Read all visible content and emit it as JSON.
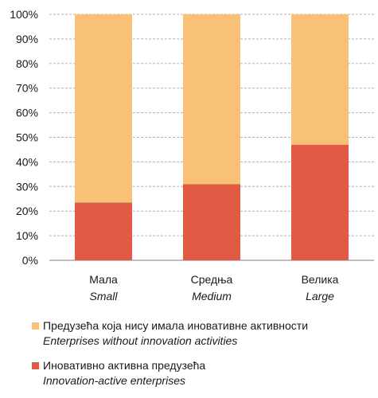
{
  "chart_data": {
    "type": "bar",
    "stacked": true,
    "categories": [
      "Мала",
      "Средња",
      "Велика"
    ],
    "categories_en": [
      "Small",
      "Medium",
      "Large"
    ],
    "ylim": [
      0,
      100
    ],
    "y_ticks": [
      "0%",
      "10%",
      "20%",
      "30%",
      "40%",
      "50%",
      "60%",
      "70%",
      "80%",
      "90%",
      "100%"
    ],
    "grid": true,
    "legend_position": "bottom",
    "series": [
      {
        "name": "Иновативно активна предузећа",
        "name_en": "Innovation-active enterprises",
        "color": "#e05a44",
        "values": [
          23.5,
          31,
          47
        ]
      },
      {
        "name": "Предузећа која нису имала иновативне активности",
        "name_en": "Enterprises without innovation activities",
        "color": "#f9c176",
        "values": [
          76.5,
          69,
          53
        ]
      }
    ]
  },
  "legend": [
    {
      "label": "Предузећа која нису имала иновативне активности",
      "label_en": "Enterprises without innovation activities",
      "color": "#f9c176"
    },
    {
      "label": "Иновативно активна предузећа",
      "label_en": "Innovation-active enterprises",
      "color": "#e05a44"
    }
  ]
}
